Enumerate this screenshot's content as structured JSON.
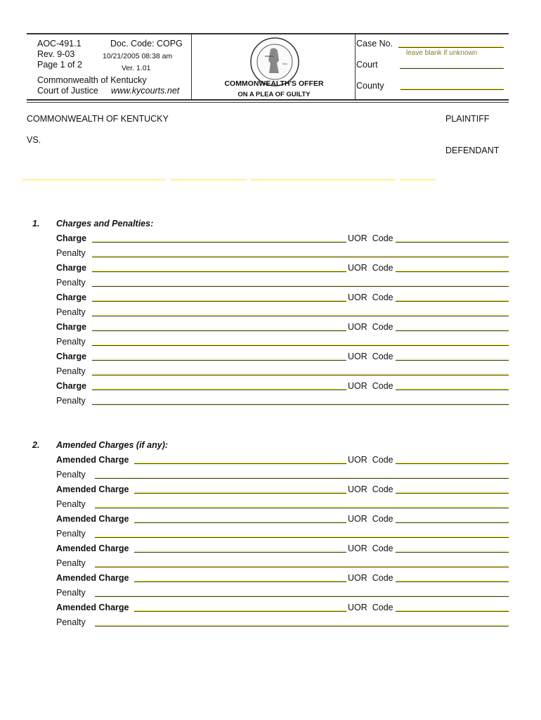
{
  "header": {
    "form_number": "AOC-491.1",
    "doc_code": "Doc. Code: COPG",
    "revision": "Rev. 9-03",
    "timestamp": "10/21/2005 08:38 am",
    "page": "Page 1 of 2",
    "version": "Ver. 1.01",
    "org_line1": "Commonwealth of Kentucky",
    "org_line2": "Court of Justice",
    "website": "www.kycourts.net",
    "title_line1": "COMMONWEALTH'S OFFER",
    "title_line2": "ON A PLEA OF GUILTY",
    "seal_text": "Commonwealth of Kentucky - Court of Justice",
    "case_no_label": "Case No.",
    "case_no_hint": "leave blank if unknown",
    "court_label": "Court",
    "county_label": "County",
    "case_no_value": "",
    "court_value": "",
    "county_value": ""
  },
  "parties": {
    "plaintiff_name": "COMMONWEALTH OF KENTUCKY",
    "plaintiff_label": "PLAINTIFF",
    "vs": "VS.",
    "defendant_label": "DEFENDANT"
  },
  "section1": {
    "number": "1.",
    "heading": "Charges and Penalties:",
    "charge_label": "Charge",
    "penalty_label": "Penalty",
    "uor_label": "UOR  Code",
    "rows": [
      {
        "charge": "",
        "uor": "",
        "penalty": ""
      },
      {
        "charge": "",
        "uor": "",
        "penalty": ""
      },
      {
        "charge": "",
        "uor": "",
        "penalty": ""
      },
      {
        "charge": "",
        "uor": "",
        "penalty": ""
      },
      {
        "charge": "",
        "uor": "",
        "penalty": ""
      },
      {
        "charge": "",
        "uor": "",
        "penalty": ""
      }
    ]
  },
  "section2": {
    "number": "2.",
    "heading": "Amended Charges (if any):",
    "charge_label": "Amended Charge",
    "penalty_label": "Penalty",
    "uor_label": "UOR  Code",
    "rows": [
      {
        "charge": "",
        "uor": "",
        "penalty": ""
      },
      {
        "charge": "",
        "uor": "",
        "penalty": ""
      },
      {
        "charge": "",
        "uor": "",
        "penalty": ""
      },
      {
        "charge": "",
        "uor": "",
        "penalty": ""
      },
      {
        "charge": "",
        "uor": "",
        "penalty": ""
      },
      {
        "charge": "",
        "uor": "",
        "penalty": ""
      }
    ]
  },
  "colors": {
    "field_highlight": "#fff6b0",
    "hint_text": "#8a7a2a"
  }
}
